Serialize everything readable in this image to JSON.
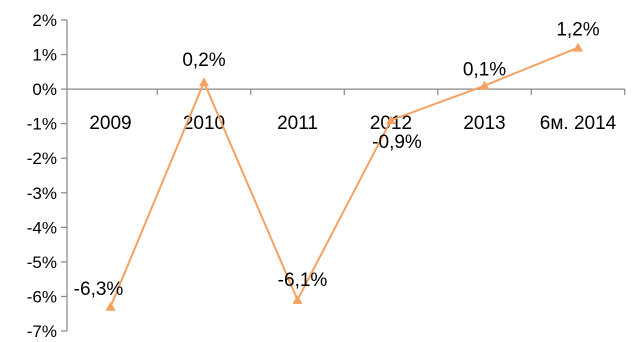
{
  "chart_data": {
    "type": "line",
    "categories": [
      "2009",
      "2010",
      "2011",
      "2012",
      "2013",
      "6м. 2014"
    ],
    "series": [
      {
        "values": [
          -6.3,
          0.2,
          -6.1,
          -0.9,
          0.1,
          1.2
        ],
        "labels": [
          "-6,3%",
          "0,2%",
          "-6,1%",
          "-0,9%",
          "0,1%",
          "1,2%"
        ],
        "color": "#F5A260"
      }
    ],
    "y_ticks": [
      2,
      1,
      0,
      -1,
      -2,
      -3,
      -4,
      -5,
      -6,
      -7
    ],
    "y_tick_labels": [
      "2%",
      "1%",
      "0%",
      "-1%",
      "-2%",
      "-3%",
      "-4%",
      "-5%",
      "-6%",
      "-7%"
    ],
    "ylim": [
      -7,
      2
    ],
    "marker": "triangle",
    "grid": false,
    "axis_color": "#878787"
  }
}
